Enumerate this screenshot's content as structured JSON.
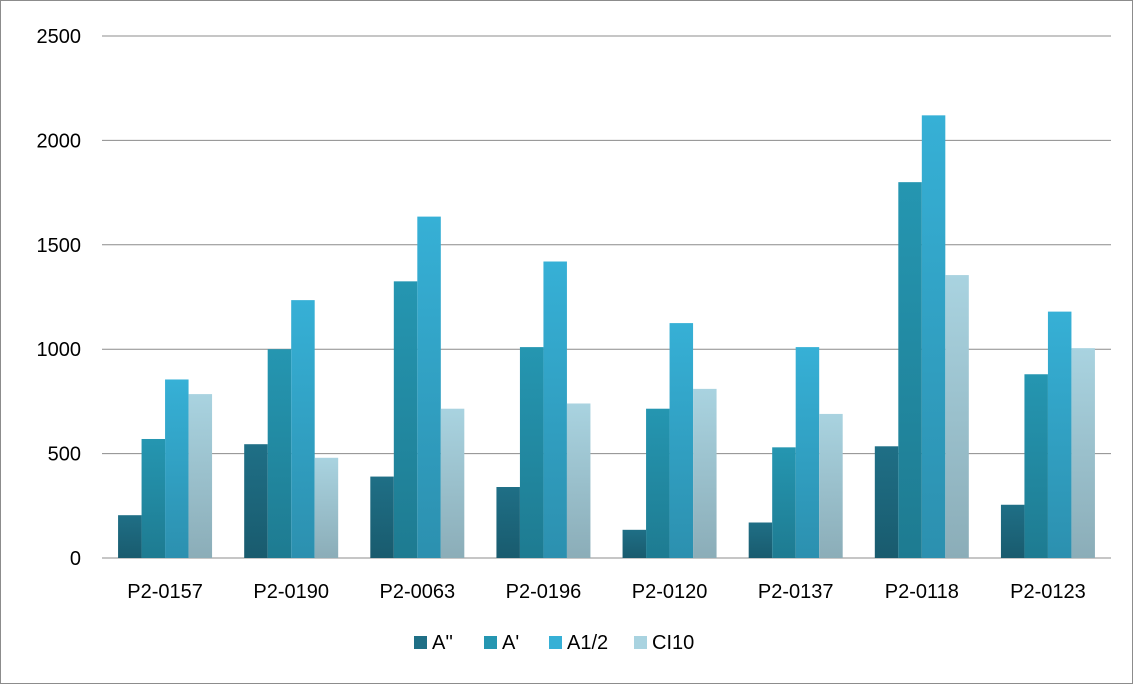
{
  "chart_data": {
    "type": "bar",
    "title": "",
    "xlabel": "",
    "ylabel": "",
    "ylim": [
      0,
      2500
    ],
    "yticks": [
      0,
      500,
      1000,
      1500,
      2000,
      2500
    ],
    "grid": true,
    "legend_position": "bottom",
    "categories": [
      "P2-0157",
      "P2-0190",
      "P2-0063",
      "P2-0196",
      "P2-0120",
      "P2-0137",
      "P2-0118",
      "P2-0123"
    ],
    "series": [
      {
        "name": "A''",
        "color": "#1f6f86",
        "values": [
          205,
          545,
          390,
          340,
          135,
          170,
          535,
          255
        ]
      },
      {
        "name": "A'",
        "color": "#2596b1",
        "values": [
          570,
          1000,
          1325,
          1010,
          715,
          530,
          1800,
          880
        ]
      },
      {
        "name": "A1/2",
        "color": "#36b0d6",
        "values": [
          855,
          1235,
          1635,
          1420,
          1125,
          1010,
          2120,
          1180
        ]
      },
      {
        "name": "CI10",
        "color": "#a9d3e0",
        "values": [
          785,
          480,
          715,
          740,
          810,
          690,
          1355,
          1005
        ]
      }
    ]
  }
}
